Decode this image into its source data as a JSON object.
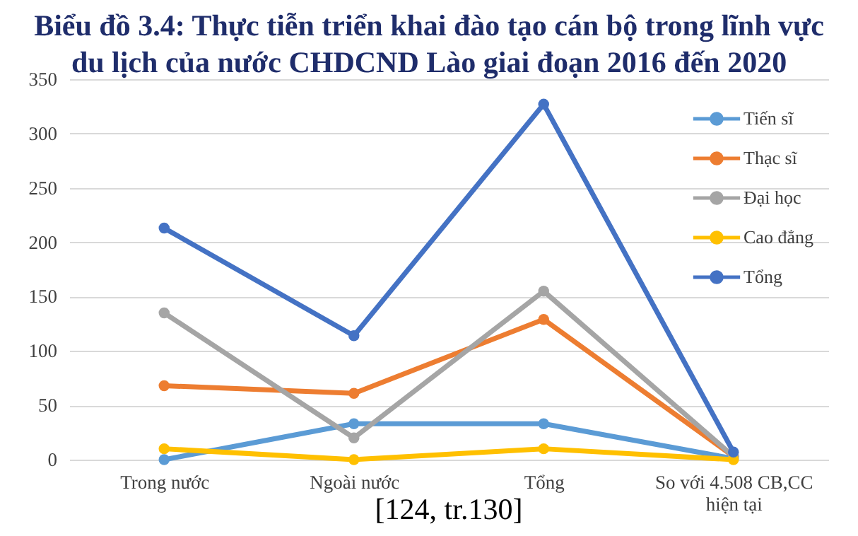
{
  "chart_data": {
    "type": "line",
    "title": "Biểu đồ 3.4: Thực tiễn triển khai đào tạo cán bộ trong lĩnh vực du lịch của nước CHDCND Lào giai đoạn 2016 đến 2020",
    "categories": [
      "Trong nước",
      "Ngoài nước",
      "Tổng",
      "So với 4.508 CB,CC hiện tại"
    ],
    "series": [
      {
        "name": "Tiến sĩ",
        "color": "#5b9bd5",
        "values": [
          0,
          33,
          33,
          1
        ]
      },
      {
        "name": "Thạc sĩ",
        "color": "#ed7d31",
        "values": [
          68,
          61,
          129,
          3
        ]
      },
      {
        "name": "Đại học",
        "color": "#a5a5a5",
        "values": [
          135,
          20,
          155,
          3
        ]
      },
      {
        "name": "Cao đẳng",
        "color": "#ffc000",
        "values": [
          10,
          0,
          10,
          0
        ]
      },
      {
        "name": "Tổng",
        "color": "#4472c4",
        "values": [
          213,
          114,
          327,
          7
        ]
      }
    ],
    "ylim": [
      0,
      350
    ],
    "yticks": [
      0,
      50,
      100,
      150,
      200,
      250,
      300,
      350
    ],
    "grid": "y",
    "legend": "top right",
    "marker": "circle",
    "line_style": "solid",
    "annotations": [
      "[124, tr.130]"
    ]
  }
}
